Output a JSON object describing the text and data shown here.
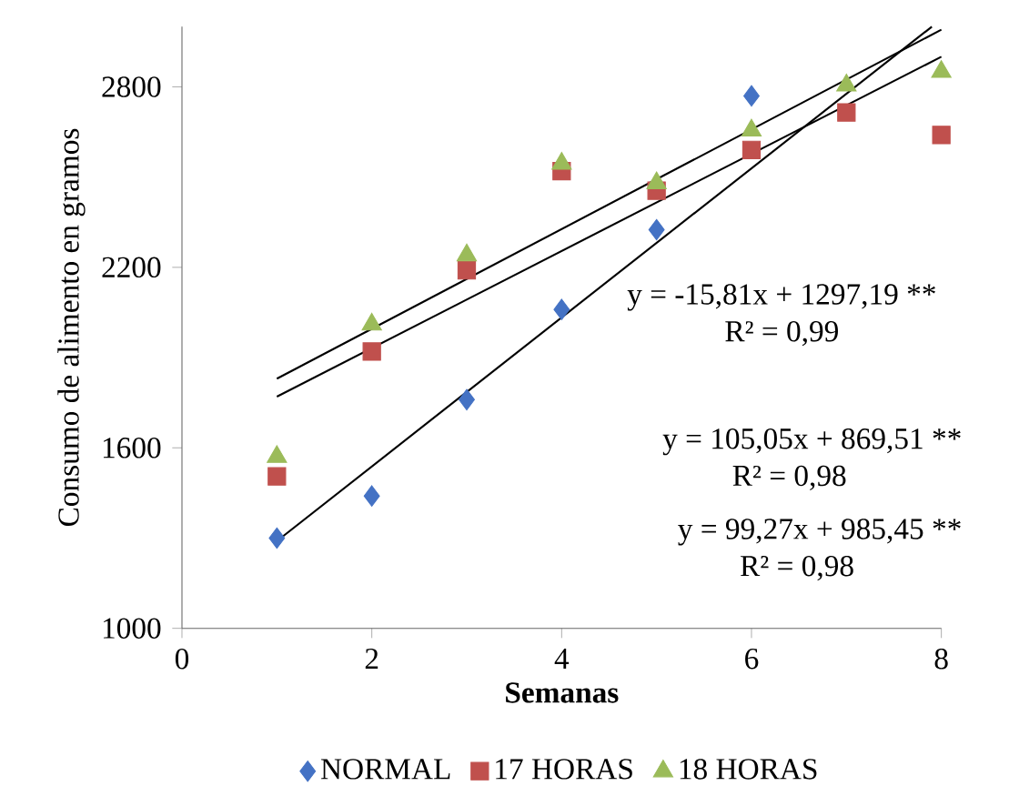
{
  "chart_data": {
    "type": "scatter",
    "xlabel": "Semanas",
    "ylabel": "Consumo de alimento en gramos",
    "xlim": [
      0,
      8
    ],
    "ylim": [
      1000,
      3000
    ],
    "xticks": [
      0,
      2,
      4,
      6,
      8
    ],
    "yticks": [
      1000,
      1600,
      2200,
      2800
    ],
    "x": [
      1,
      2,
      3,
      4,
      5,
      6,
      7,
      8
    ],
    "legend": "bottom",
    "series": [
      {
        "name": "NORMAL",
        "color": "#4472c4",
        "marker": "diamond",
        "values": [
          1300,
          1440,
          1760,
          2060,
          2325,
          2770,
          null,
          null
        ]
      },
      {
        "name": "17 HORAS",
        "color": "#c0504d",
        "marker": "square",
        "values": [
          1505,
          1920,
          2190,
          2520,
          2455,
          2590,
          2715,
          2640
        ]
      },
      {
        "name": "18 HORAS",
        "color": "#9bbb59",
        "marker": "triangle",
        "values": [
          1570,
          2010,
          2240,
          2545,
          2480,
          2655,
          2805,
          2850
        ]
      },
      {
        "type": "line",
        "color": "#000000",
        "marker": "none",
        "x": [
          1,
          8
        ],
        "values": [
          1830,
          2990
        ]
      },
      {
        "type": "line",
        "color": "#000000",
        "marker": "none",
        "x": [
          1,
          8
        ],
        "values": [
          1770,
          2900
        ]
      },
      {
        "type": "line",
        "color": "#000000",
        "marker": "none",
        "x": [
          1,
          7.9
        ],
        "values": [
          1290,
          3000
        ]
      }
    ],
    "annotations": [
      "y = -15,81x + 1297,19 **",
      "R² = 0,99",
      "y = 105,05x + 869,51 **",
      "R² = 0,98",
      "y = 99,27x + 985,45 **",
      "R² = 0,98"
    ]
  }
}
